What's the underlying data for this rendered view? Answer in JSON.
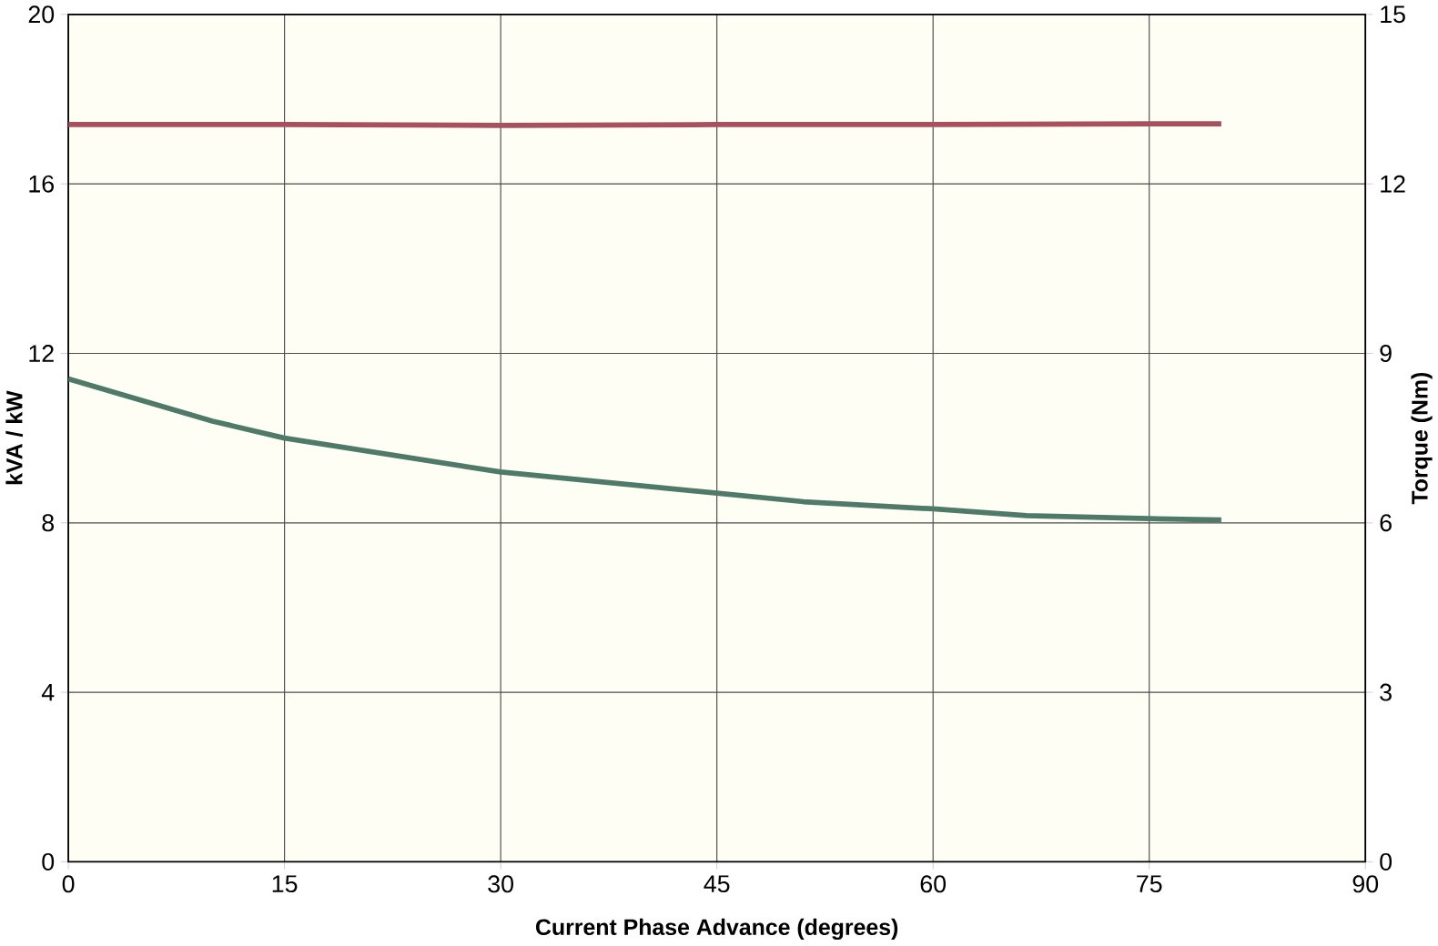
{
  "chart_data": {
    "type": "line",
    "xlabel": "Current Phase Advance (degrees)",
    "ylabel": "kVA / kW",
    "y2label": "Torque (Nm)",
    "xlim": [
      0,
      90
    ],
    "xticks": [
      0,
      15,
      30,
      45,
      60,
      75,
      90
    ],
    "ylim": [
      0,
      20
    ],
    "yticks": [
      0,
      4,
      8,
      12,
      16,
      20
    ],
    "y2lim": [
      0,
      15
    ],
    "y2ticks": [
      0,
      3,
      6,
      9,
      12,
      15
    ],
    "grid": true,
    "series": [
      {
        "color": "#a8505e",
        "x": [
          0,
          15,
          30,
          45,
          60,
          75,
          80
        ],
        "values": [
          17.4,
          17.4,
          17.38,
          17.4,
          17.4,
          17.42,
          17.42
        ]
      },
      {
        "color": "#4f7a6a",
        "x": [
          0,
          10,
          15,
          30,
          45,
          51,
          60,
          66.5,
          75,
          80
        ],
        "values": [
          11.4,
          10.4,
          10.0,
          9.2,
          8.7,
          8.5,
          8.33,
          8.17,
          8.1,
          8.07
        ]
      }
    ]
  }
}
